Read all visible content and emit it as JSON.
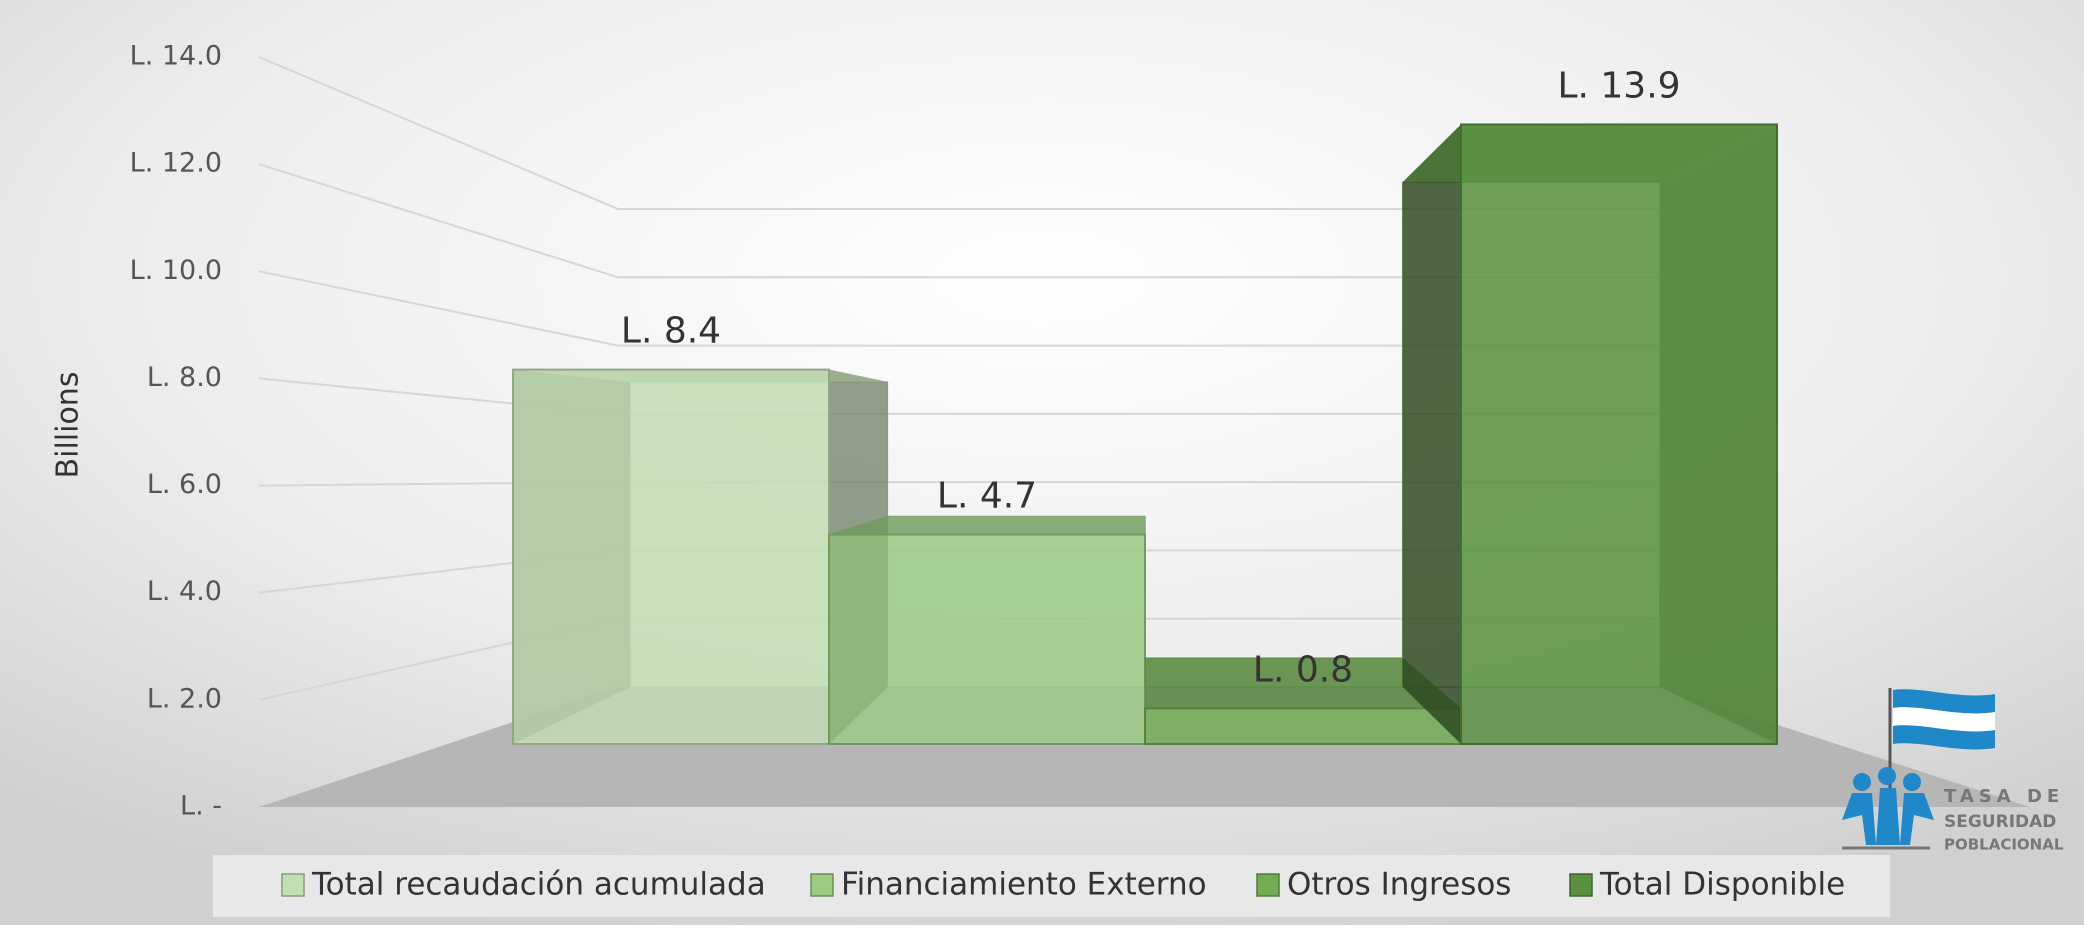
{
  "chart_data": {
    "type": "bar",
    "y_axis_label": "Billions",
    "categories": [
      null
    ],
    "series": [
      {
        "name": "Total recaudación acumulada",
        "color": "#c3ddb5",
        "values": [
          8.4
        ],
        "value_labels": [
          "L. 8.4"
        ]
      },
      {
        "name": "Financiamiento Externo",
        "color": "#9ccb84",
        "values": [
          4.7
        ],
        "value_labels": [
          "L. 4.7"
        ]
      },
      {
        "name": "Otros Ingresos",
        "color": "#72ad52",
        "values": [
          0.8
        ],
        "value_labels": [
          "L. 0.8"
        ]
      },
      {
        "name": "Total Disponible",
        "color": "#5a9140",
        "values": [
          13.9
        ],
        "value_labels": [
          "L. 13.9"
        ]
      }
    ],
    "ylim": [
      0,
      14
    ],
    "yticks": [
      {
        "value": 0,
        "label": "L. -"
      },
      {
        "value": 2,
        "label": "L. 2.0"
      },
      {
        "value": 4,
        "label": "L. 4.0"
      },
      {
        "value": 6,
        "label": "L. 6.0"
      },
      {
        "value": 8,
        "label": "L. 8.0"
      },
      {
        "value": 10,
        "label": "L. 10.0"
      },
      {
        "value": 12,
        "label": "L. 12.0"
      },
      {
        "value": 14,
        "label": "L. 14.0"
      }
    ],
    "grid": true,
    "legend": "bottom",
    "logo": {
      "lines": [
        "TASA DE",
        "SEGURIDAD",
        "POBLACIONAL"
      ]
    }
  }
}
